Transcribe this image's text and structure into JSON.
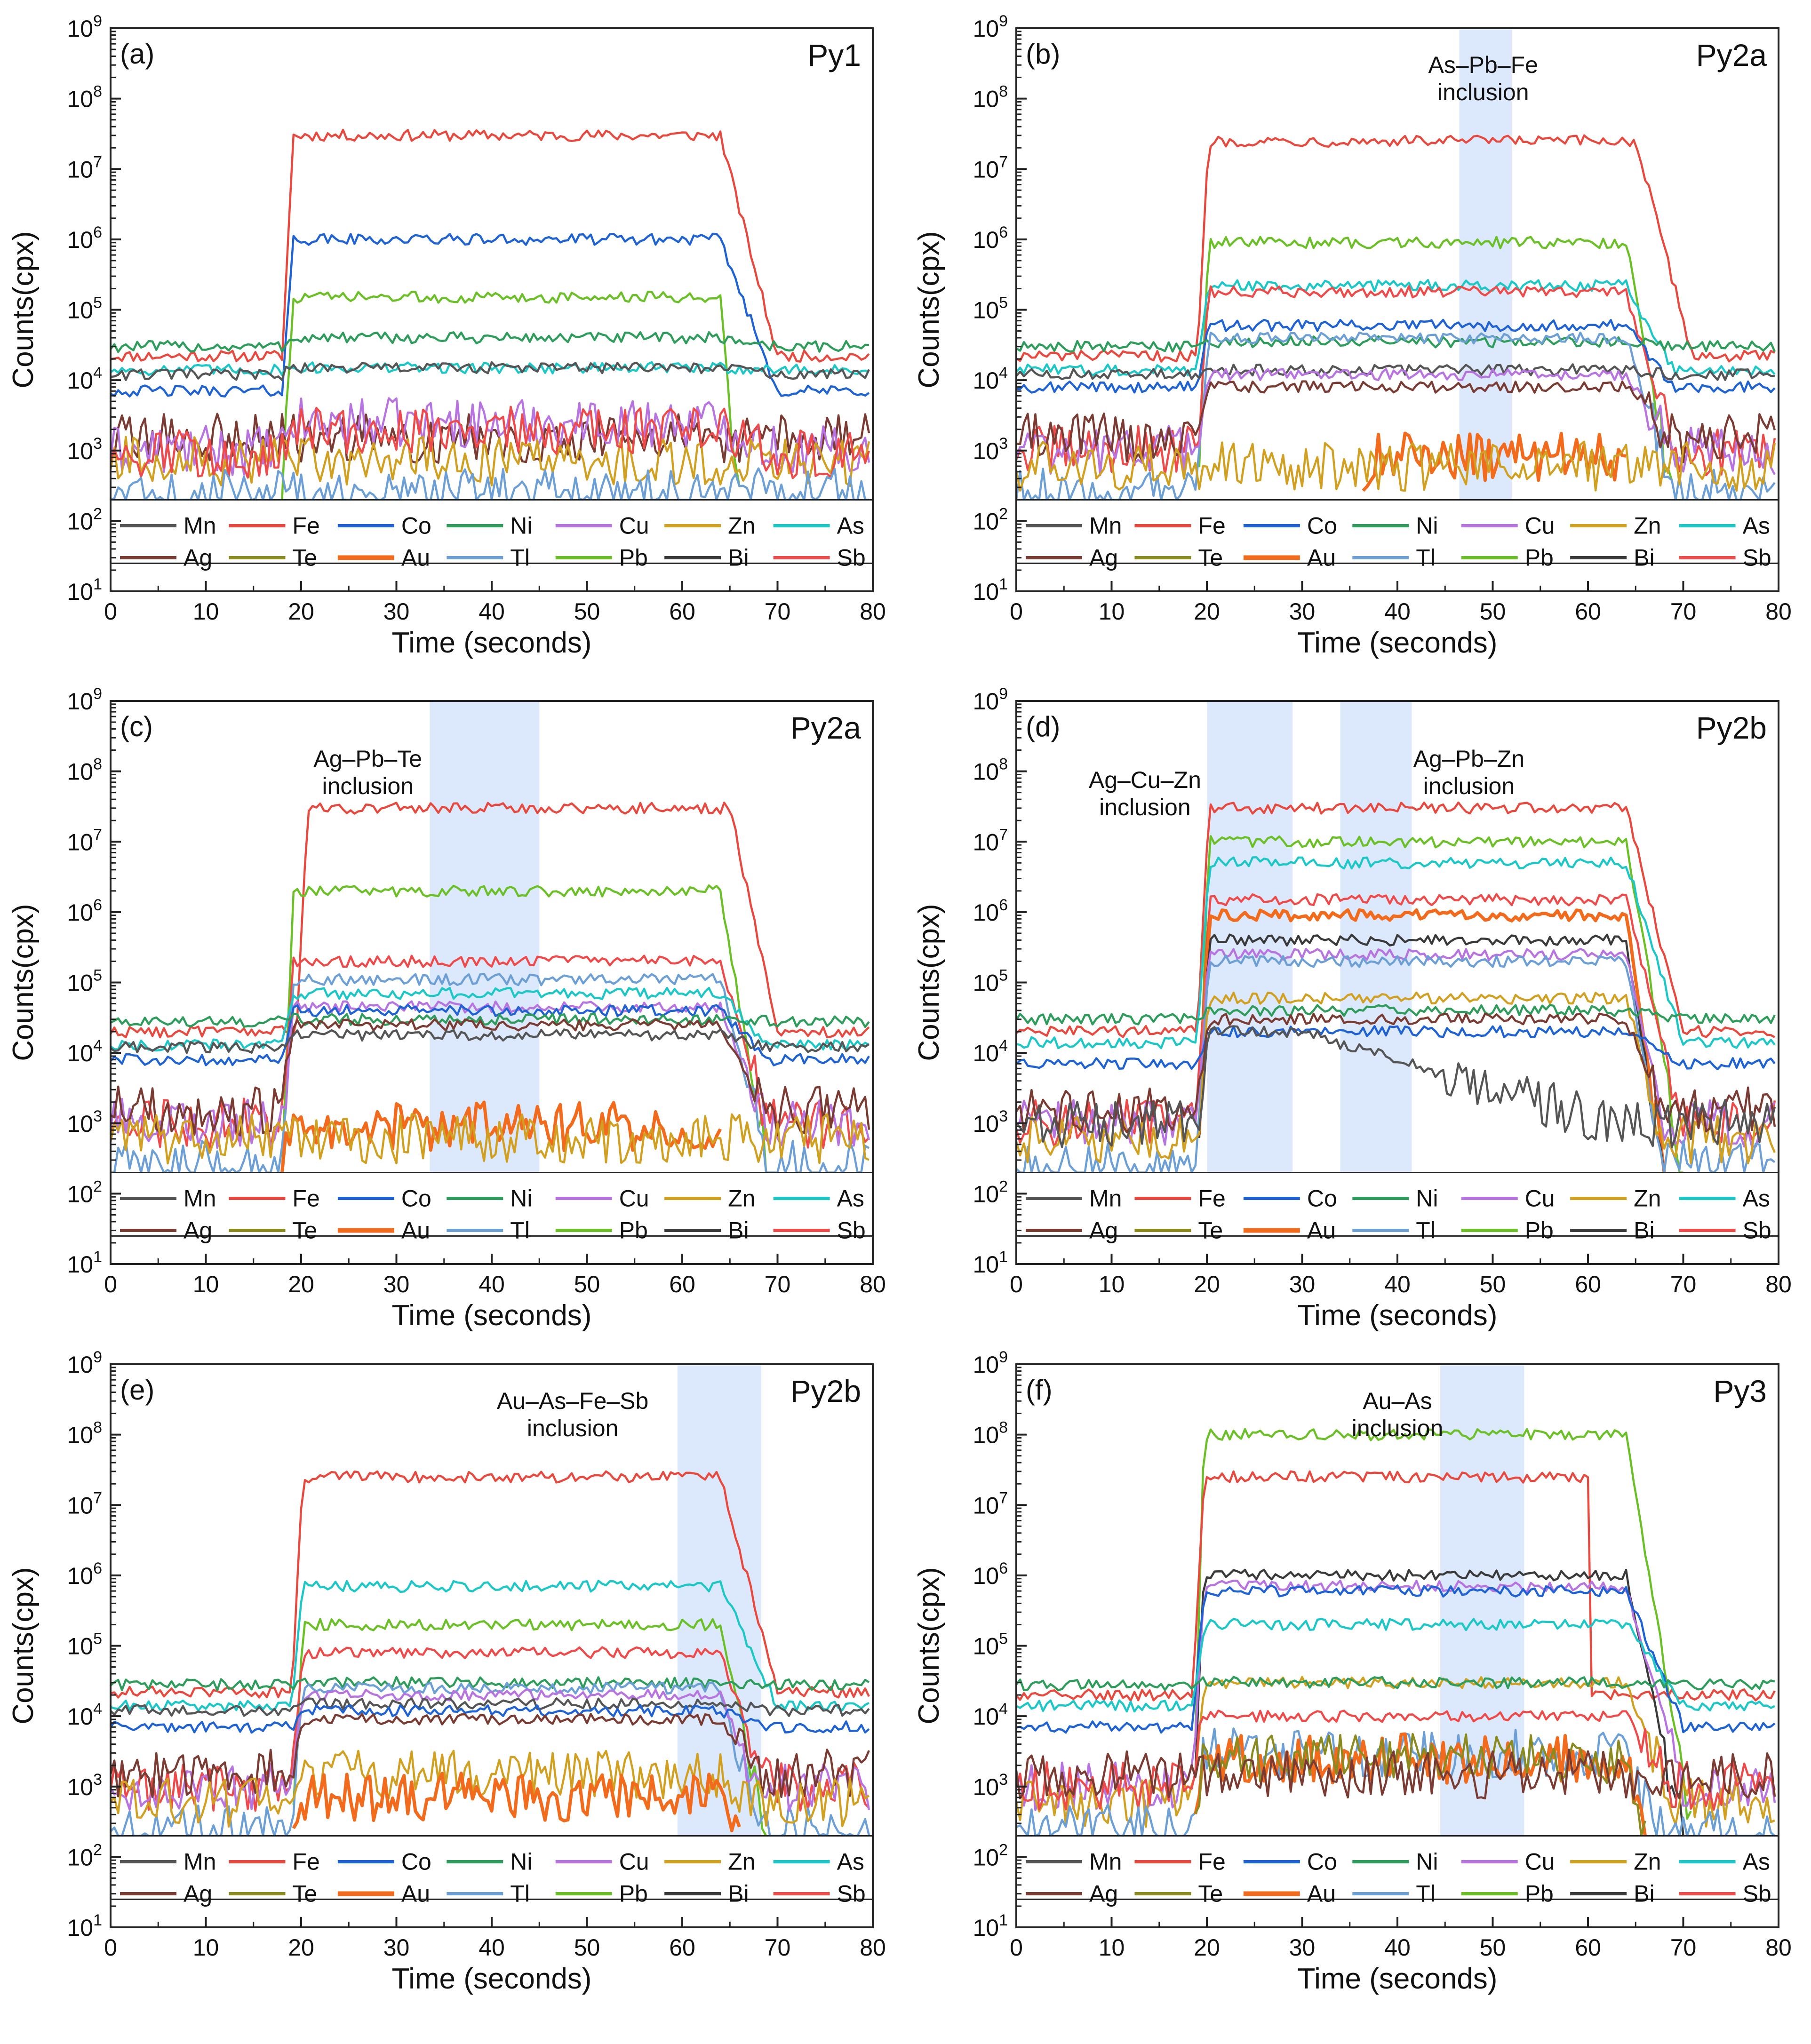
{
  "figure": {
    "x_label": "Time (seconds)",
    "y_label": "Counts(cpx)",
    "x_ticks": [
      "0",
      "10",
      "20",
      "30",
      "40",
      "50",
      "60",
      "70",
      "80"
    ],
    "y_tick_exponents": [
      1,
      2,
      3,
      4,
      5,
      6,
      7,
      8,
      9
    ],
    "y_tick_base": "10",
    "legend_row1": [
      "Mn",
      "Fe",
      "Co",
      "Ni",
      "Cu",
      "Zn",
      "As"
    ],
    "legend_row2": [
      "Ag",
      "Te",
      "Au",
      "Tl",
      "Pb",
      "Bi",
      "Sb"
    ]
  },
  "colors": {
    "Mn": "#555555",
    "Fe": "#e8493f",
    "Co": "#1f62d3",
    "Ni": "#2e9c5a",
    "Cu": "#b774e0",
    "Zn": "#d1a020",
    "As": "#1ec7c7",
    "Ag": "#7a3b32",
    "Te": "#8a8a1e",
    "Au": "#f26a1b",
    "Tl": "#6c9fd6",
    "Pb": "#6cc027",
    "Bi": "#3a3a3a",
    "Sb": "#ef4a4a",
    "highlight": "#dce8fb"
  },
  "chart_data": [
    {
      "type": "line",
      "panel": "(a)",
      "title": "Py1",
      "xlabel": "Time (seconds)",
      "ylabel": "Counts(cpx)",
      "xlim": [
        0,
        80
      ],
      "ylim": [
        10,
        1000000000
      ],
      "yscale": "log",
      "highlights": [],
      "series": [
        {
          "name": "Fe",
          "start": 18,
          "end": 64,
          "plateau": 30000000,
          "tail": 70,
          "bg": 22000
        },
        {
          "name": "Co",
          "start": 18,
          "end": 64,
          "plateau": 1000000,
          "tail": 70,
          "bg": 7000
        },
        {
          "name": "Pb",
          "start": 18,
          "end": 64,
          "plateau": 150000,
          "tail": 66,
          "bg": 0
        },
        {
          "name": "Ni",
          "start": 18,
          "end": 64,
          "plateau": 40000,
          "tail": 70,
          "bg": 30000
        },
        {
          "name": "As",
          "start": 18,
          "end": 64,
          "plateau": 15000,
          "tail": 70,
          "bg": 14000
        },
        {
          "name": "Mn",
          "start": 18,
          "end": 64,
          "plateau": 15000,
          "tail": 70,
          "bg": 12000
        },
        {
          "name": "Ag",
          "start": 0,
          "end": 80,
          "plateau": 1500,
          "tail": 80,
          "bg": 1500
        },
        {
          "name": "Cu",
          "start": 18,
          "end": 64,
          "plateau": 2500,
          "tail": 70,
          "bg": 1000
        },
        {
          "name": "Zn",
          "start": 0,
          "end": 80,
          "plateau": 700,
          "tail": 80,
          "bg": 700
        },
        {
          "name": "Sb",
          "start": 18,
          "end": 64,
          "plateau": 2000,
          "tail": 70,
          "bg": 900
        },
        {
          "name": "Tl",
          "start": 0,
          "end": 80,
          "plateau": 250,
          "tail": 80,
          "bg": 250
        }
      ]
    },
    {
      "type": "line",
      "panel": "(b)",
      "title": "Py2a",
      "xlabel": "Time (seconds)",
      "ylabel": "Counts(cpx)",
      "xlim": [
        0,
        80
      ],
      "ylim": [
        10,
        1000000000
      ],
      "yscale": "log",
      "highlights": [
        {
          "x0": 46.5,
          "x1": 52,
          "label1": "As–Pb–Fe",
          "label2": "inclusion",
          "lx": 49
        }
      ],
      "series": [
        {
          "name": "Fe",
          "start": 19,
          "end": 65,
          "plateau": 25000000,
          "tail": 71,
          "bg": 22000
        },
        {
          "name": "Pb",
          "start": 19,
          "end": 64,
          "plateau": 900000,
          "tail": 69,
          "bg": 0
        },
        {
          "name": "As",
          "start": 19,
          "end": 64,
          "plateau": 220000,
          "tail": 69,
          "bg": 14000
        },
        {
          "name": "Sb",
          "start": 19,
          "end": 64,
          "plateau": 180000,
          "tail": 69,
          "bg": 1000
        },
        {
          "name": "Co",
          "start": 19,
          "end": 64,
          "plateau": 60000,
          "tail": 69,
          "bg": 8000
        },
        {
          "name": "Ni",
          "start": 19,
          "end": 64,
          "plateau": 35000,
          "tail": 69,
          "bg": 30000
        },
        {
          "name": "Tl",
          "start": 19,
          "end": 64,
          "plateau": 40000,
          "tail": 69,
          "bg": 250
        },
        {
          "name": "Mn",
          "start": 19,
          "end": 64,
          "plateau": 14000,
          "tail": 69,
          "bg": 12000
        },
        {
          "name": "Cu",
          "start": 19,
          "end": 64,
          "plateau": 12000,
          "tail": 69,
          "bg": 1000
        },
        {
          "name": "Ag",
          "start": 19,
          "end": 64,
          "plateau": 8000,
          "tail": 69,
          "bg": 1500
        },
        {
          "name": "Au",
          "start": 36,
          "end": 64,
          "plateau": 800,
          "tail": 64,
          "bg": 0
        },
        {
          "name": "Zn",
          "start": 0,
          "end": 80,
          "plateau": 600,
          "tail": 80,
          "bg": 600
        }
      ]
    },
    {
      "type": "line",
      "panel": "(c)",
      "title": "Py2a",
      "xlabel": "Time (seconds)",
      "ylabel": "Counts(cpx)",
      "xlim": [
        0,
        80
      ],
      "ylim": [
        10,
        1000000000
      ],
      "yscale": "log",
      "highlights": [
        {
          "x0": 33.5,
          "x1": 45,
          "label1": "Ag–Pb–Te",
          "label2": "inclusion",
          "lx": 27
        }
      ],
      "series": [
        {
          "name": "Fe",
          "start": 19.5,
          "end": 65,
          "plateau": 30000000,
          "tail": 70,
          "bg": 20000
        },
        {
          "name": "Pb",
          "start": 18,
          "end": 64,
          "plateau": 2000000,
          "tail": 69,
          "bg": 0
        },
        {
          "name": "Sb",
          "start": 18,
          "end": 64,
          "plateau": 200000,
          "tail": 69,
          "bg": 1000
        },
        {
          "name": "Tl",
          "start": 18,
          "end": 64,
          "plateau": 110000,
          "tail": 69,
          "bg": 250
        },
        {
          "name": "As",
          "start": 18,
          "end": 64,
          "plateau": 70000,
          "tail": 69,
          "bg": 13000
        },
        {
          "name": "Cu",
          "start": 18,
          "end": 64,
          "plateau": 45000,
          "tail": 69,
          "bg": 1000
        },
        {
          "name": "Co",
          "start": 18,
          "end": 64,
          "plateau": 40000,
          "tail": 69,
          "bg": 8000
        },
        {
          "name": "Ni",
          "start": 18,
          "end": 64,
          "plateau": 30000,
          "tail": 69,
          "bg": 28000
        },
        {
          "name": "Ag",
          "start": 18,
          "end": 64,
          "plateau": 25000,
          "tail": 69,
          "bg": 1500
        },
        {
          "name": "Mn",
          "start": 18,
          "end": 64,
          "plateau": 18000,
          "tail": 69,
          "bg": 12000
        },
        {
          "name": "Au",
          "start": 18,
          "end": 64,
          "plateau": 900,
          "tail": 64,
          "bg": 0
        },
        {
          "name": "Zn",
          "start": 0,
          "end": 80,
          "plateau": 600,
          "tail": 80,
          "bg": 600
        }
      ]
    },
    {
      "type": "line",
      "panel": "(d)",
      "title": "Py2b",
      "xlabel": "Time (seconds)",
      "ylabel": "Counts(cpx)",
      "xlim": [
        0,
        80
      ],
      "ylim": [
        10,
        1000000000
      ],
      "yscale": "log",
      "highlights": [
        {
          "x0": 20,
          "x1": 29,
          "label1": "Ag–Cu–Zn",
          "label2": "inclusion",
          "lx": 13.5
        },
        {
          "x0": 34,
          "x1": 41.5,
          "label1": "Ag–Pb–Zn",
          "label2": "inclusion",
          "lx": 47.5
        }
      ],
      "series": [
        {
          "name": "Fe",
          "start": 19,
          "end": 64,
          "plateau": 30000000,
          "tail": 70,
          "bg": 20000
        },
        {
          "name": "Pb",
          "start": 19,
          "end": 64,
          "plateau": 10000000,
          "tail": 70,
          "bg": 0
        },
        {
          "name": "As",
          "start": 19,
          "end": 64,
          "plateau": 5000000,
          "tail": 70,
          "bg": 14000
        },
        {
          "name": "Sb",
          "start": 19,
          "end": 64,
          "plateau": 1500000,
          "tail": 70,
          "bg": 1000
        },
        {
          "name": "Au",
          "start": 19,
          "end": 64,
          "plateau": 900000,
          "tail": 68,
          "bg": 0
        },
        {
          "name": "Bi",
          "start": 19,
          "end": 64,
          "plateau": 400000,
          "tail": 68,
          "bg": 0
        },
        {
          "name": "Cu",
          "start": 19,
          "end": 64,
          "plateau": 250000,
          "tail": 68,
          "bg": 1000
        },
        {
          "name": "Tl",
          "start": 19,
          "end": 64,
          "plateau": 200000,
          "tail": 68,
          "bg": 250
        },
        {
          "name": "Zn",
          "start": 19,
          "end": 64,
          "plateau": 60000,
          "tail": 68,
          "bg": 600
        },
        {
          "name": "Ni",
          "start": 19,
          "end": 64,
          "plateau": 40000,
          "tail": 70,
          "bg": 30000
        },
        {
          "name": "Co",
          "start": 19,
          "end": 64,
          "plateau": 20000,
          "tail": 70,
          "bg": 7000
        },
        {
          "name": "Ag",
          "start": 19,
          "end": 64,
          "plateau": 30000,
          "tail": 68,
          "bg": 1500
        },
        {
          "name": "Mn",
          "start": 19,
          "end": 30,
          "plateau": 20000,
          "tail": 62,
          "bg": 1000
        }
      ]
    },
    {
      "type": "line",
      "panel": "(e)",
      "title": "Py2b",
      "xlabel": "Time (seconds)",
      "ylabel": "Counts(cpx)",
      "xlim": [
        0,
        80
      ],
      "ylim": [
        10,
        1000000000
      ],
      "yscale": "log",
      "highlights": [
        {
          "x0": 59.5,
          "x1": 68.3,
          "label1": "Au–As–Fe–Sb",
          "label2": "inclusion",
          "lx": 48.5
        }
      ],
      "series": [
        {
          "name": "Fe",
          "start": 19,
          "end": 64,
          "plateau": 25000000,
          "tail": 70,
          "bg": 22000
        },
        {
          "name": "As",
          "start": 19,
          "end": 64,
          "plateau": 700000,
          "tail": 70,
          "bg": 14000
        },
        {
          "name": "Pb",
          "start": 19,
          "end": 64,
          "plateau": 200000,
          "tail": 69,
          "bg": 0
        },
        {
          "name": "Sb",
          "start": 19,
          "end": 64,
          "plateau": 80000,
          "tail": 69,
          "bg": 1000
        },
        {
          "name": "Ni",
          "start": 19,
          "end": 64,
          "plateau": 30000,
          "tail": 70,
          "bg": 28000
        },
        {
          "name": "Tl",
          "start": 19,
          "end": 64,
          "plateau": 25000,
          "tail": 68,
          "bg": 250
        },
        {
          "name": "Cu",
          "start": 19,
          "end": 64,
          "plateau": 20000,
          "tail": 68,
          "bg": 1000
        },
        {
          "name": "Mn",
          "start": 19,
          "end": 64,
          "plateau": 15000,
          "tail": 69,
          "bg": 12000
        },
        {
          "name": "Co",
          "start": 19,
          "end": 64,
          "plateau": 12000,
          "tail": 69,
          "bg": 7000
        },
        {
          "name": "Ag",
          "start": 19,
          "end": 64,
          "plateau": 9000,
          "tail": 68,
          "bg": 1500
        },
        {
          "name": "Zn",
          "start": 19,
          "end": 64,
          "plateau": 1500,
          "tail": 68,
          "bg": 600
        },
        {
          "name": "Au",
          "start": 19,
          "end": 64,
          "plateau": 700,
          "tail": 66,
          "bg": 0
        }
      ]
    },
    {
      "type": "line",
      "panel": "(f)",
      "title": "Py3",
      "xlabel": "Time (seconds)",
      "ylabel": "Counts(cpx)",
      "xlim": [
        0,
        80
      ],
      "ylim": [
        10,
        1000000000
      ],
      "yscale": "log",
      "highlights": [
        {
          "x0": 44.5,
          "x1": 53.3,
          "label1": "Au–As",
          "label2": "inclusion",
          "lx": 40
        }
      ],
      "series": [
        {
          "name": "Pb",
          "start": 18.5,
          "end": 64,
          "plateau": 100000000,
          "tail": 71,
          "bg": 0
        },
        {
          "name": "Fe",
          "start": 18.5,
          "end": 60,
          "plateau": 25000000,
          "tail": 60,
          "bg": 20000
        },
        {
          "name": "Bi",
          "start": 18.5,
          "end": 64,
          "plateau": 1000000,
          "tail": 70,
          "bg": 0
        },
        {
          "name": "Cu",
          "start": 18.5,
          "end": 64,
          "plateau": 700000,
          "tail": 70,
          "bg": 1000
        },
        {
          "name": "Co",
          "start": 18.5,
          "end": 64,
          "plateau": 600000,
          "tail": 70,
          "bg": 7000
        },
        {
          "name": "As",
          "start": 18.5,
          "end": 64,
          "plateau": 200000,
          "tail": 70,
          "bg": 14000
        },
        {
          "name": "Zn",
          "start": 18.5,
          "end": 64,
          "plateau": 30000,
          "tail": 69,
          "bg": 600
        },
        {
          "name": "Ni",
          "start": 18.5,
          "end": 64,
          "plateau": 30000,
          "tail": 70,
          "bg": 28000
        },
        {
          "name": "Sb",
          "start": 18.5,
          "end": 64,
          "plateau": 10000,
          "tail": 69,
          "bg": 1000
        },
        {
          "name": "Tl",
          "start": 18.5,
          "end": 64,
          "plateau": 3000,
          "tail": 67,
          "bg": 250
        },
        {
          "name": "Au",
          "start": 18.5,
          "end": 64,
          "plateau": 2500,
          "tail": 66,
          "bg": 0
        },
        {
          "name": "Te",
          "start": 18.5,
          "end": 64,
          "plateau": 2500,
          "tail": 66,
          "bg": 0
        },
        {
          "name": "Ag",
          "start": 0,
          "end": 80,
          "plateau": 1500,
          "tail": 80,
          "bg": 1500
        }
      ]
    }
  ]
}
